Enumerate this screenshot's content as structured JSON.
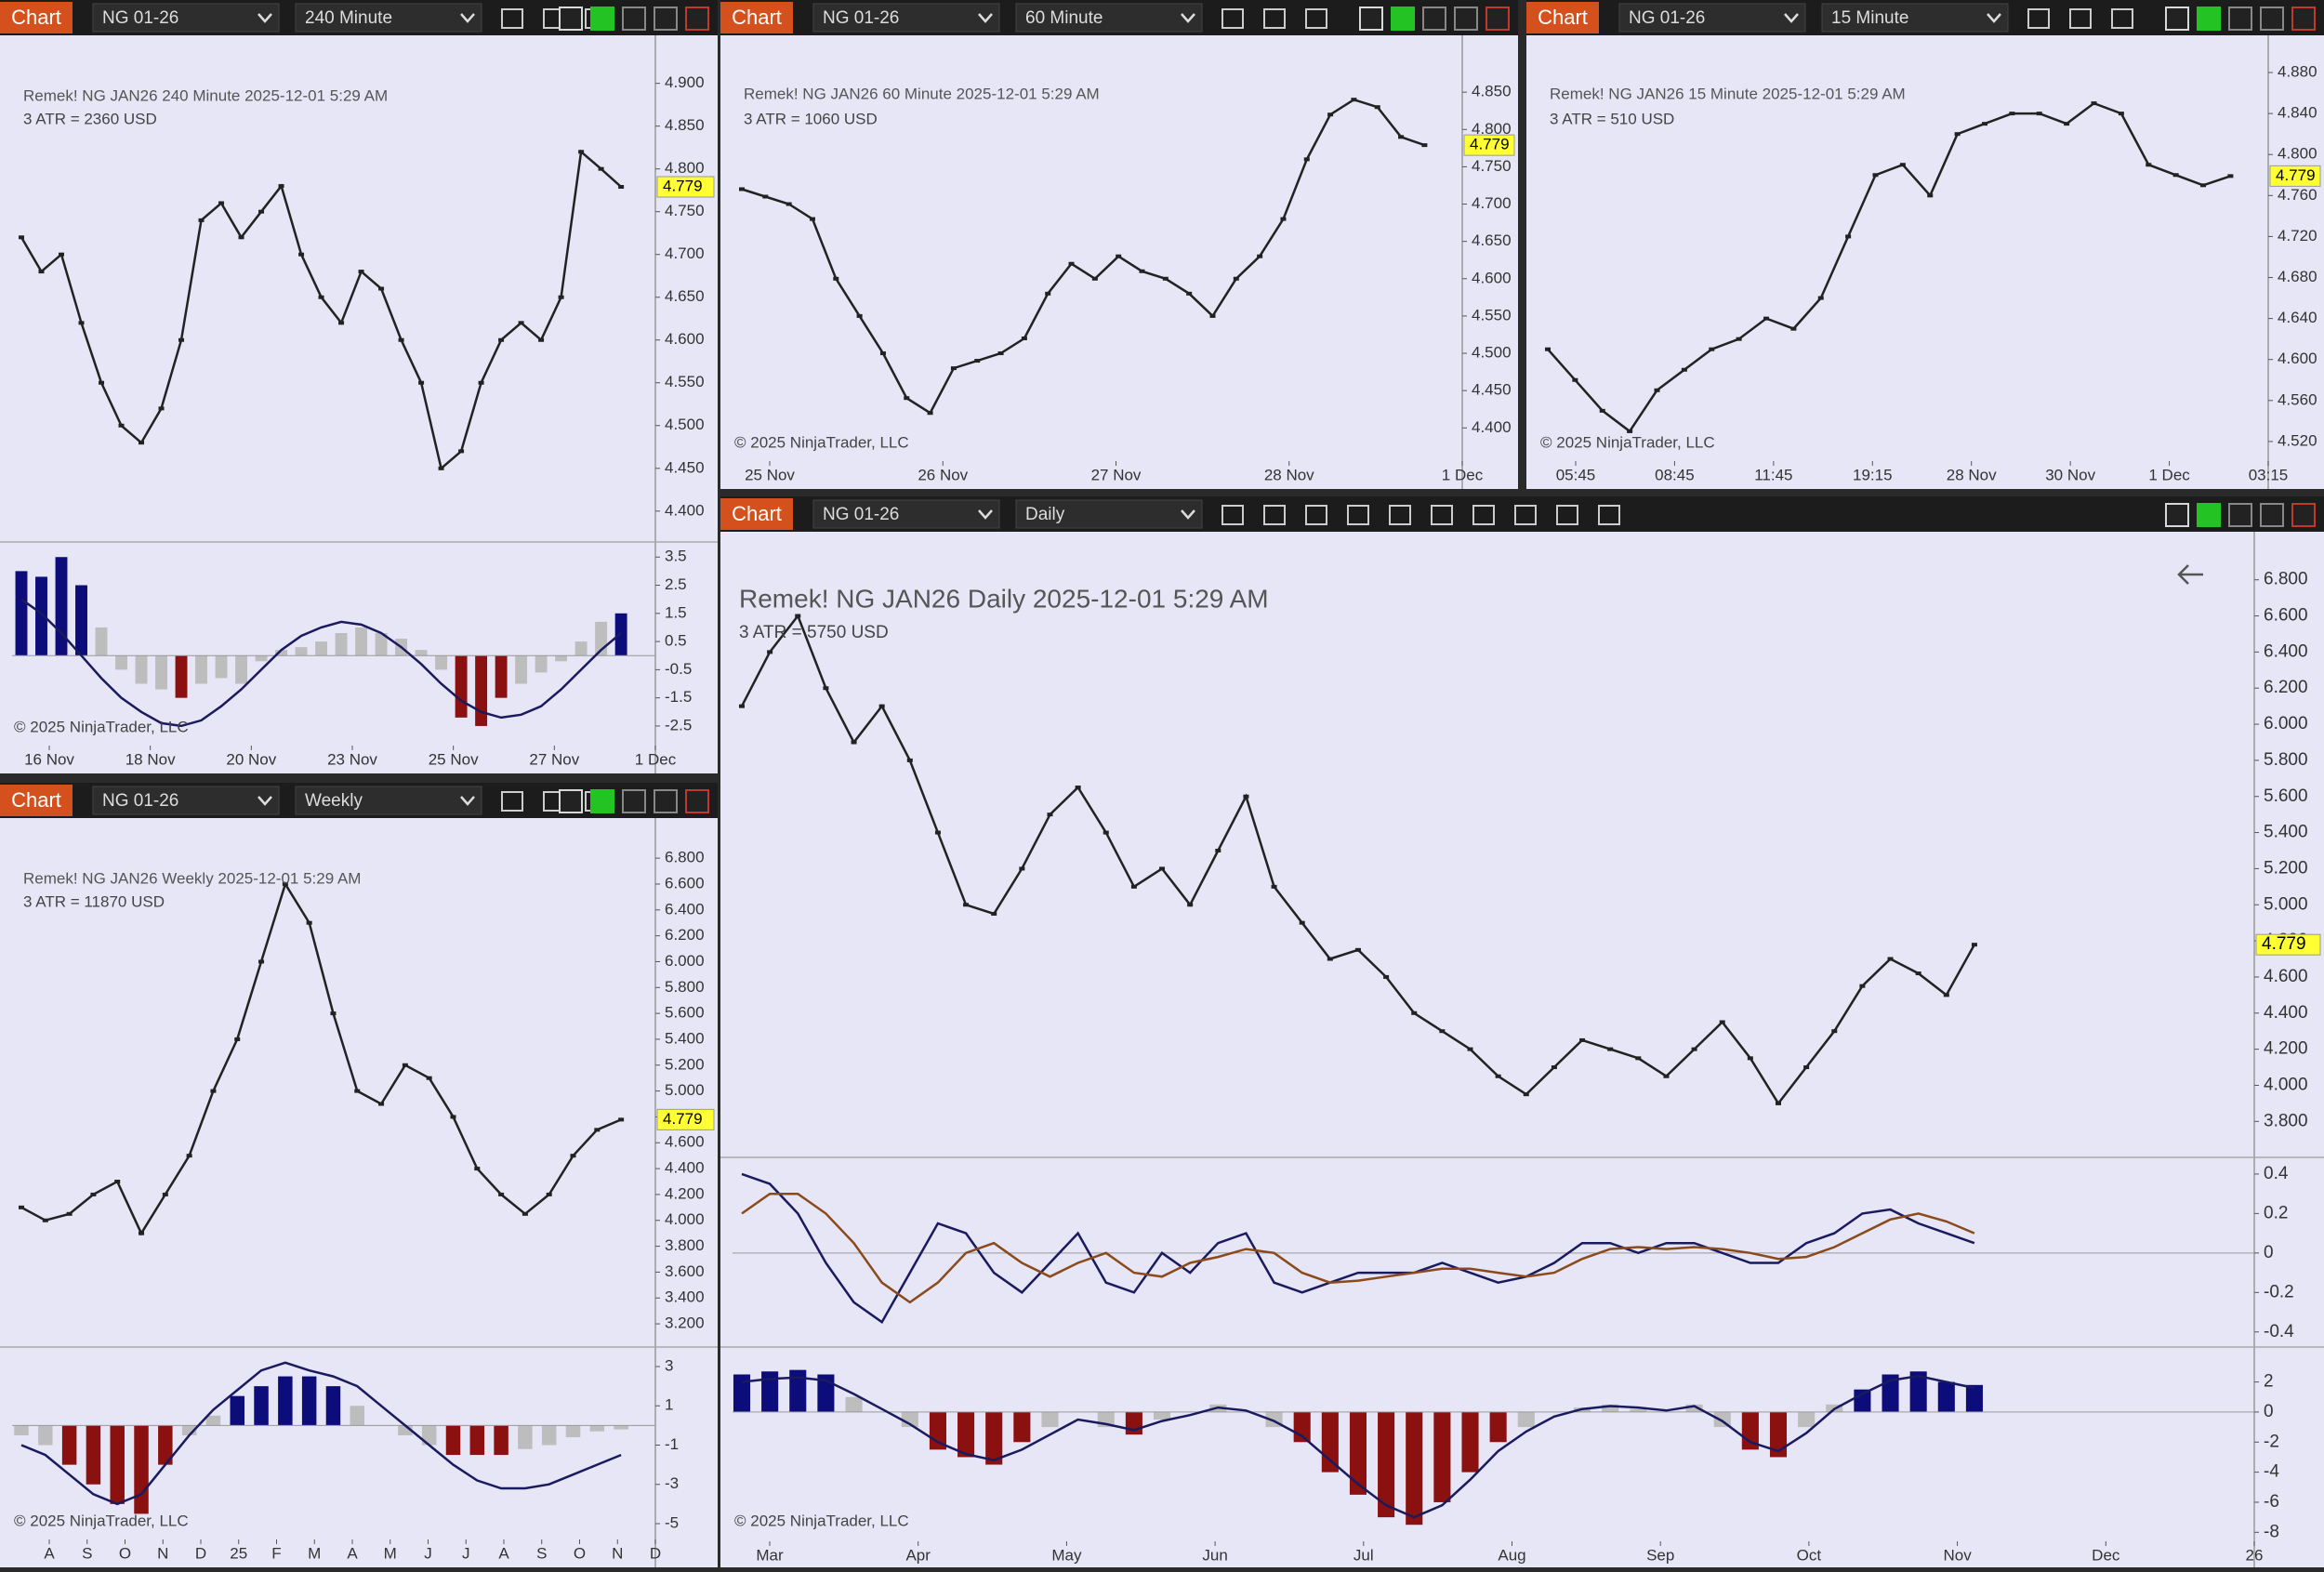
{
  "windows": [
    {
      "tab": "Chart",
      "instrument": "NG 01-26",
      "interval": "240 Minute",
      "header": "Remek!  NG JAN26  240 Minute  2025-12-01 5:29 AM",
      "atr": "3 ATR = 2360 USD",
      "copyright": "© 2025 NinjaTrader, LLC",
      "xlabels": [
        "16 Nov",
        "18 Nov",
        "20 Nov",
        "23 Nov",
        "25 Nov",
        "27 Nov",
        "1 Dec"
      ],
      "panels": [
        {
          "ylim": [
            4.365,
            4.942
          ],
          "last": 4.779,
          "color": "#222222",
          "yticks": [
            {
              "value": 4.9,
              "label": "4.900"
            },
            {
              "value": 4.85,
              "label": "4.850"
            },
            {
              "value": 4.8,
              "label": "4.800"
            },
            {
              "value": 4.75,
              "label": "4.750"
            },
            {
              "value": 4.7,
              "label": "4.700"
            },
            {
              "value": 4.65,
              "label": "4.650"
            },
            {
              "value": 4.6,
              "label": "4.600"
            },
            {
              "value": 4.55,
              "label": "4.550"
            },
            {
              "value": 4.5,
              "label": "4.500"
            },
            {
              "value": 4.45,
              "label": "4.450"
            },
            {
              "value": 4.4,
              "label": "4.400"
            }
          ],
          "close": [
            4.72,
            4.68,
            4.7,
            4.62,
            4.55,
            4.5,
            4.48,
            4.52,
            4.6,
            4.74,
            4.76,
            4.72,
            4.75,
            4.78,
            4.7,
            4.65,
            4.62,
            4.68,
            4.66,
            4.6,
            4.55,
            4.45,
            4.47,
            4.55,
            4.6,
            4.62,
            4.6,
            4.65,
            4.82,
            4.8,
            4.779
          ]
        },
        {
          "ylim": [
            -3.03,
            3.97
          ],
          "yticks": [
            3.5,
            2.5,
            1.5,
            0.5,
            -0.5,
            -1.5,
            -2.5
          ],
          "histogram": [
            3,
            2.8,
            3.5,
            2.5,
            1,
            -0.5,
            -1,
            -1.2,
            -1.5,
            -1,
            -0.8,
            -1,
            -0.2,
            0.2,
            0.3,
            0.5,
            0.8,
            1,
            0.8,
            0.6,
            0.2,
            -0.5,
            -2.2,
            -2.5,
            -1.5,
            -1,
            -0.6,
            -0.2,
            0.5,
            1.2,
            1.5
          ],
          "lines": [
            {
              "color": "#1a1a5e",
              "values": [
                2,
                1.5,
                0.8,
                0,
                -0.8,
                -1.5,
                -2,
                -2.4,
                -2.5,
                -2.3,
                -1.8,
                -1.2,
                -0.5,
                0.2,
                0.7,
                1,
                1.2,
                1.1,
                0.8,
                0.3,
                -0.3,
                -1,
                -1.6,
                -2,
                -2.2,
                -2.1,
                -1.8,
                -1.2,
                -0.5,
                0.2,
                0.8
              ]
            }
          ]
        }
      ]
    },
    {
      "tab": "Chart",
      "instrument": "NG 01-26",
      "interval": "60 Minute",
      "header": "Remek!  NG JAN26  60 Minute  2025-12-01 5:29 AM",
      "atr": "3 ATR = 1060 USD",
      "copyright": "© 2025 NinjaTrader, LLC",
      "xlabels": [
        "25 Nov",
        "26 Nov",
        "27 Nov",
        "28 Nov",
        "1 Dec"
      ],
      "panels": [
        {
          "ylim": [
            4.358,
            4.91
          ],
          "last": 4.779,
          "color": "#222222",
          "yticks": [
            {
              "value": 4.85,
              "label": "4.850"
            },
            {
              "value": 4.8,
              "label": "4.800"
            },
            {
              "value": 4.75,
              "label": "4.750"
            },
            {
              "value": 4.7,
              "label": "4.700"
            },
            {
              "value": 4.65,
              "label": "4.650"
            },
            {
              "value": 4.6,
              "label": "4.600"
            },
            {
              "value": 4.55,
              "label": "4.550"
            },
            {
              "value": 4.5,
              "label": "4.500"
            },
            {
              "value": 4.45,
              "label": "4.450"
            },
            {
              "value": 4.4,
              "label": "4.400"
            }
          ],
          "close": [
            4.72,
            4.71,
            4.7,
            4.68,
            4.6,
            4.55,
            4.5,
            4.44,
            4.42,
            4.48,
            4.49,
            4.5,
            4.52,
            4.58,
            4.62,
            4.6,
            4.63,
            4.61,
            4.6,
            4.58,
            4.55,
            4.6,
            4.63,
            4.68,
            4.76,
            4.82,
            4.84,
            4.83,
            4.79,
            4.779
          ]
        }
      ]
    },
    {
      "tab": "Chart",
      "instrument": "NG 01-26",
      "interval": "15 Minute",
      "header": "Remek!  NG JAN26  15 Minute  2025-12-01 5:29 AM",
      "atr": "3 ATR = 510 USD",
      "copyright": "© 2025 NinjaTrader, LLC",
      "xlabels": [
        "05:45",
        "08:45",
        "11:45",
        "19:15",
        "28 Nov",
        "30 Nov",
        "1 Dec",
        "03:15"
      ],
      "panels": [
        {
          "ylim": [
            4.5027,
            4.9045
          ],
          "last": 4.779,
          "color": "#222222",
          "yticks": [
            {
              "value": 4.88,
              "label": "4.880"
            },
            {
              "value": 4.84,
              "label": "4.840"
            },
            {
              "value": 4.8,
              "label": "4.800"
            },
            {
              "value": 4.76,
              "label": "4.760"
            },
            {
              "value": 4.72,
              "label": "4.720"
            },
            {
              "value": 4.68,
              "label": "4.680"
            },
            {
              "value": 4.64,
              "label": "4.640"
            },
            {
              "value": 4.6,
              "label": "4.600"
            },
            {
              "value": 4.56,
              "label": "4.560"
            },
            {
              "value": 4.52,
              "label": "4.520"
            }
          ],
          "close": [
            4.61,
            4.58,
            4.55,
            4.53,
            4.57,
            4.59,
            4.61,
            4.62,
            4.64,
            4.63,
            4.66,
            4.72,
            4.78,
            4.79,
            4.76,
            4.82,
            4.83,
            4.84,
            4.84,
            4.83,
            4.85,
            4.84,
            4.79,
            4.78,
            4.77,
            4.779
          ]
        }
      ]
    },
    {
      "tab": "Chart",
      "instrument": "NG 01-26",
      "interval": "Weekly",
      "header": "Remek!  NG JAN26  Weekly  2025-12-01 5:29 AM",
      "atr": "3 ATR = 11870 USD",
      "copyright": "© 2025 NinjaTrader, LLC",
      "xlabels": [
        "A",
        "S",
        "O",
        "N",
        "D",
        "25",
        "F",
        "M",
        "A",
        "M",
        "J",
        "J",
        "A",
        "S",
        "O",
        "N",
        "D"
      ],
      "panels": [
        {
          "ylim": [
            3.028,
            6.995
          ],
          "last": 4.779,
          "color": "#222222",
          "yticks": [
            {
              "value": 6.8,
              "label": "6.800"
            },
            {
              "value": 6.6,
              "label": "6.600"
            },
            {
              "value": 6.4,
              "label": "6.400"
            },
            {
              "value": 6.2,
              "label": "6.200"
            },
            {
              "value": 6,
              "label": "6.000"
            },
            {
              "value": 5.8,
              "label": "5.800"
            },
            {
              "value": 5.6,
              "label": "5.600"
            },
            {
              "value": 5.4,
              "label": "5.400"
            },
            {
              "value": 5.2,
              "label": "5.200"
            },
            {
              "value": 5,
              "label": "5.000"
            },
            {
              "value": 4.8,
              "label": "4.800"
            },
            {
              "value": 4.6,
              "label": "4.600"
            },
            {
              "value": 4.4,
              "label": "4.400"
            },
            {
              "value": 4.2,
              "label": "4.200"
            },
            {
              "value": 4,
              "label": "4.000"
            },
            {
              "value": 3.8,
              "label": "3.800"
            },
            {
              "value": 3.6,
              "label": "3.600"
            },
            {
              "value": 3.4,
              "label": "3.400"
            },
            {
              "value": 3.2,
              "label": "3.200"
            }
          ],
          "close": [
            4.1,
            4,
            4.05,
            4.2,
            4.3,
            3.9,
            4.2,
            4.5,
            5,
            5.4,
            6,
            6.6,
            6.3,
            5.6,
            5,
            4.9,
            5.2,
            5.1,
            4.8,
            4.4,
            4.2,
            4.05,
            4.2,
            4.5,
            4.7,
            4.779
          ]
        },
        {
          "ylim": [
            -5.9,
            3.9
          ],
          "yticks": [
            3,
            1,
            -1,
            -3,
            -5
          ],
          "histogram": [
            -0.5,
            -1,
            -2,
            -3,
            -4,
            -4.5,
            -2,
            -0.5,
            0.5,
            1.5,
            2,
            2.5,
            2.5,
            2,
            1,
            0,
            -0.5,
            -1,
            -1.5,
            -1.5,
            -1.5,
            -1.2,
            -1,
            -0.6,
            -0.3,
            -0.2
          ],
          "lines": [
            {
              "color": "#1a1a5e",
              "values": [
                -1,
                -1.5,
                -2.5,
                -3.5,
                -4,
                -3.5,
                -2,
                -0.5,
                0.8,
                1.8,
                2.8,
                3.2,
                2.8,
                2.5,
                2,
                1,
                0,
                -1,
                -2,
                -2.8,
                -3.2,
                -3.2,
                -3,
                -2.5,
                -2,
                -1.5
              ]
            }
          ]
        }
      ]
    },
    {
      "tab": "Chart",
      "instrument": "NG 01-26",
      "interval": "Daily",
      "header": "Remek!  NG JAN26  Daily  2025-12-01 5:29 AM",
      "atr": "3 ATR = 5750 USD",
      "copyright": "© 2025 NinjaTrader, LLC",
      "xlabels": [
        "Mar",
        "Apr",
        "May",
        "Jun",
        "Jul",
        "Aug",
        "Sep",
        "Oct",
        "Nov",
        "Dec",
        "26"
      ],
      "panels": [
        {
          "ylim": [
            3.611,
            6.989
          ],
          "last": 4.779,
          "color": "#222222",
          "yticks": [
            {
              "value": 6.8,
              "label": "6.800"
            },
            {
              "value": 6.6,
              "label": "6.600"
            },
            {
              "value": 6.4,
              "label": "6.400"
            },
            {
              "value": 6.2,
              "label": "6.200"
            },
            {
              "value": 6,
              "label": "6.000"
            },
            {
              "value": 5.8,
              "label": "5.800"
            },
            {
              "value": 5.6,
              "label": "5.600"
            },
            {
              "value": 5.4,
              "label": "5.400"
            },
            {
              "value": 5.2,
              "label": "5.200"
            },
            {
              "value": 5,
              "label": "5.000"
            },
            {
              "value": 4.8,
              "label": "4.800"
            },
            {
              "value": 4.6,
              "label": "4.600"
            },
            {
              "value": 4.4,
              "label": "4.400"
            },
            {
              "value": 4.2,
              "label": "4.200"
            },
            {
              "value": 4,
              "label": "4.000"
            },
            {
              "value": 3.8,
              "label": "3.800"
            }
          ],
          "close": [
            6.1,
            6.4,
            6.6,
            6.2,
            5.9,
            6.1,
            5.8,
            5.4,
            5,
            4.95,
            5.2,
            5.5,
            5.65,
            5.4,
            5.1,
            5.2,
            5,
            5.3,
            5.6,
            5.1,
            4.9,
            4.7,
            4.75,
            4.6,
            4.4,
            4.3,
            4.2,
            4.05,
            3.95,
            4.1,
            4.25,
            4.2,
            4.15,
            4.05,
            4.2,
            4.35,
            4.15,
            3.9,
            4.1,
            4.3,
            4.55,
            4.7,
            4.62,
            4.5,
            4.779
          ]
        },
        {
          "ylim": [
            -0.467,
            0.475
          ],
          "yticks": [
            0.4,
            0.2,
            0,
            -0.2,
            -0.4
          ],
          "lines": [
            {
              "color": "#1a1a5e",
              "values": [
                0.4,
                0.35,
                0.2,
                -0.05,
                -0.25,
                -0.35,
                -0.1,
                0.15,
                0.1,
                -0.1,
                -0.2,
                -0.05,
                0.1,
                -0.15,
                -0.2,
                0,
                -0.1,
                0.05,
                0.1,
                -0.15,
                -0.2,
                -0.15,
                -0.1,
                -0.1,
                -0.1,
                -0.05,
                -0.1,
                -0.15,
                -0.12,
                -0.05,
                0.05,
                0.05,
                0,
                0.05,
                0.05,
                0,
                -0.05,
                -0.05,
                0.05,
                0.1,
                0.2,
                0.22,
                0.15,
                0.1,
                0.05
              ]
            },
            {
              "color": "#8b4a1c",
              "values": [
                0.2,
                0.3,
                0.3,
                0.2,
                0.05,
                -0.15,
                -0.25,
                -0.15,
                0,
                0.05,
                -0.05,
                -0.12,
                -0.05,
                0,
                -0.1,
                -0.12,
                -0.05,
                -0.02,
                0.02,
                0,
                -0.1,
                -0.15,
                -0.14,
                -0.12,
                -0.1,
                -0.08,
                -0.08,
                -0.1,
                -0.12,
                -0.1,
                -0.03,
                0.02,
                0.03,
                0.02,
                0.03,
                0.02,
                0,
                -0.03,
                -0.02,
                0.03,
                0.1,
                0.17,
                0.2,
                0.16,
                0.1
              ]
            }
          ],
          "_": null
        },
        {
          "ylim": [
            -8.6,
            4.2
          ],
          "yticks": [
            2,
            0,
            -2,
            -4,
            -6,
            -8
          ],
          "histogram": [
            2.5,
            2.7,
            2.8,
            2.5,
            1,
            0,
            -1,
            -2.5,
            -3,
            -3.5,
            -2,
            -1,
            0,
            -1,
            -1.5,
            -0.5,
            0,
            0.5,
            0,
            -1,
            -2,
            -4,
            -5.5,
            -7,
            -7.5,
            -6,
            -4,
            -2,
            -1,
            0,
            0.3,
            0.5,
            0.2,
            0,
            0.5,
            -1,
            -2.5,
            -3,
            -1,
            0.5,
            1.5,
            2.5,
            2.7,
            2,
            1.8
          ],
          "lines": [
            {
              "color": "#1a1a5e",
              "values": [
                2,
                2.2,
                2.3,
                2.1,
                1.2,
                0.2,
                -0.8,
                -2,
                -2.8,
                -3.2,
                -2.5,
                -1.5,
                -0.5,
                -0.8,
                -1.2,
                -0.6,
                -0.2,
                0.3,
                0.1,
                -0.6,
                -1.6,
                -3.2,
                -4.8,
                -6.2,
                -7,
                -6.2,
                -4.5,
                -2.6,
                -1.3,
                -0.3,
                0.2,
                0.4,
                0.3,
                0.1,
                0.4,
                -0.6,
                -2,
                -2.6,
                -1.4,
                0.2,
                1.2,
                2.1,
                2.4,
                2,
                1.6
              ]
            }
          ]
        }
      ]
    }
  ]
}
